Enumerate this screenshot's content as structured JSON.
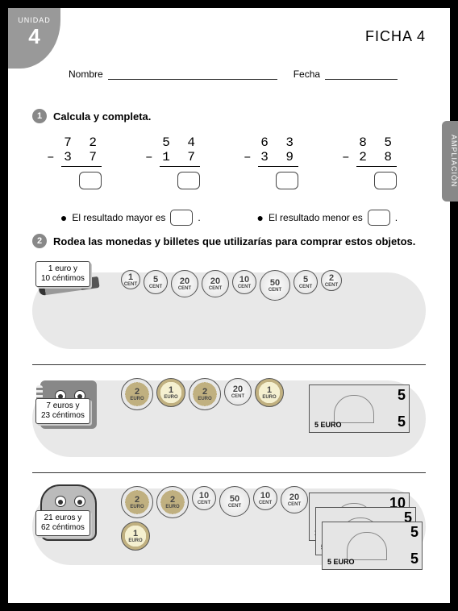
{
  "header": {
    "unit_label": "UNIDAD",
    "unit_number": "4",
    "ficha": "FICHA 4",
    "side_tab": "AMPLIACIÓN",
    "name_label": "Nombre",
    "date_label": "Fecha"
  },
  "ex1": {
    "num": "1",
    "title": "Calcula y completa.",
    "problems": [
      {
        "top": "7 2",
        "bottom": "3 7"
      },
      {
        "top": "5 4",
        "bottom": "1 7"
      },
      {
        "top": "6 3",
        "bottom": "3 9"
      },
      {
        "top": "8 5",
        "bottom": "2 8"
      }
    ],
    "result_major": "El resultado mayor es",
    "result_minor": "El resultado menor es"
  },
  "ex2": {
    "num": "2",
    "title": "Rodea las monedas y billetes que utilizarías para comprar estos objetos.",
    "rows": [
      {
        "item": "pen",
        "price_l1": "1 euro y",
        "price_l2": "10 céntimos",
        "coins": [
          {
            "v": "1",
            "u": "CENT",
            "cls": "c1"
          },
          {
            "v": "5",
            "u": "CENT",
            "cls": "c5"
          },
          {
            "v": "20",
            "u": "CENT",
            "cls": "c20"
          },
          {
            "v": "20",
            "u": "CENT",
            "cls": "c20"
          },
          {
            "v": "10",
            "u": "CENT",
            "cls": "c10"
          },
          {
            "v": "50",
            "u": "CENT",
            "cls": "c50"
          },
          {
            "v": "5",
            "u": "CENT",
            "cls": "c5"
          },
          {
            "v": "2",
            "u": "CENT",
            "cls": "c2"
          }
        ],
        "notes": []
      },
      {
        "item": "notebook",
        "price_l1": "7 euros y",
        "price_l2": "23 céntimos",
        "coins": [
          {
            "v": "2",
            "u": "EURO",
            "cls": "e2"
          },
          {
            "v": "1",
            "u": "EURO",
            "cls": "e1"
          },
          {
            "v": "2",
            "u": "EURO",
            "cls": "e2"
          },
          {
            "v": "20",
            "u": "CENT",
            "cls": "c20"
          },
          {
            "v": "1",
            "u": "EURO",
            "cls": "e1"
          }
        ],
        "notes": [
          {
            "d": "5",
            "euro": "5 EURO"
          }
        ]
      },
      {
        "item": "backpack",
        "price_l1": "21 euros y",
        "price_l2": "62 céntimos",
        "coins": [
          {
            "v": "2",
            "u": "EURO",
            "cls": "e2"
          },
          {
            "v": "2",
            "u": "EURO",
            "cls": "e2"
          },
          {
            "v": "10",
            "u": "CENT",
            "cls": "c10"
          },
          {
            "v": "50",
            "u": "CENT",
            "cls": "c50"
          },
          {
            "v": "10",
            "u": "CENT",
            "cls": "c10"
          },
          {
            "v": "20",
            "u": "CENT",
            "cls": "c20"
          },
          {
            "v": "1",
            "u": "EURO",
            "cls": "e1"
          }
        ],
        "notes": [
          {
            "d": "10",
            "euro": "10 EURO"
          },
          {
            "d": "5",
            "euro": "5 EURO"
          },
          {
            "d": "5",
            "euro": "5 EURO"
          }
        ]
      }
    ]
  }
}
